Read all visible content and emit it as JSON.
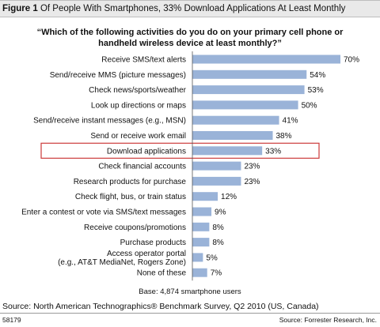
{
  "header": {
    "figure_label": "Figure 1",
    "title": "Of People With Smartphones, 33% Download Applications At Least Monthly"
  },
  "question": "“Which of the following activities do you do on your primary cell phone or handheld wireless device at least monthly?”",
  "chart_data": {
    "type": "bar",
    "orientation": "horizontal",
    "categories": [
      [
        "Receive SMS/text alerts"
      ],
      [
        "Send/receive MMS (picture messages)"
      ],
      [
        "Check news/sports/weather"
      ],
      [
        "Look up directions or maps"
      ],
      [
        "Send/receive instant messages (e.g., MSN)"
      ],
      [
        "Send or receive work email"
      ],
      [
        "Download applications"
      ],
      [
        "Check financial accounts"
      ],
      [
        "Research products for purchase"
      ],
      [
        "Check flight, bus, or train status"
      ],
      [
        "Enter a contest or vote via SMS/text messages"
      ],
      [
        "Receive coupons/promotions"
      ],
      [
        "Purchase products"
      ],
      [
        "Access operator portal",
        "(e.g., AT&T MediaNet, Rogers Zone)"
      ],
      [
        "None of these"
      ]
    ],
    "values": [
      70,
      54,
      53,
      50,
      41,
      38,
      33,
      23,
      23,
      12,
      9,
      8,
      8,
      5,
      7
    ],
    "value_labels": [
      "70%",
      "54%",
      "53%",
      "50%",
      "41%",
      "38%",
      "33%",
      "23%",
      "23%",
      "12%",
      "9%",
      "8%",
      "8%",
      "5%",
      "7%"
    ],
    "highlighted_category": "Download applications",
    "bar_color": "#9ab3d8",
    "highlight_color": "#cc3a3a",
    "xlim": [
      0,
      70
    ]
  },
  "base_note": "Base: 4,874 smartphone users",
  "source": "Source: North American Technographics® Benchmark Survey, Q2 2010 (US, Canada)",
  "figure_id": "58179",
  "publisher": "Source: Forrester Research, Inc."
}
